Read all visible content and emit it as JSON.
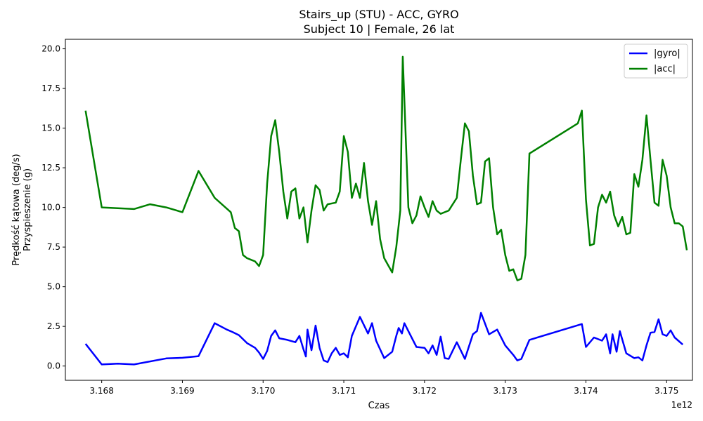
{
  "chart_data": {
    "type": "line",
    "title": "Stairs_up (STU) - ACC, GYRO",
    "subtitle": "Subject 10 | Female, 26 lat",
    "xlabel": "Czas",
    "ylabel_line1": "Prędkość kątowa (deg/s)",
    "ylabel_line2": "Przyspieszenie (g)",
    "x_offset_label": "1e12",
    "xlim": [
      3.16755,
      3.17532
    ],
    "ylim": [
      -0.9,
      20.6
    ],
    "x_ticks": [
      3.168,
      3.169,
      3.17,
      3.171,
      3.172,
      3.173,
      3.174,
      3.175
    ],
    "x_tick_labels": [
      "3.168",
      "3.169",
      "3.170",
      "3.171",
      "3.172",
      "3.173",
      "3.174",
      "3.175"
    ],
    "y_ticks": [
      0,
      2.5,
      5,
      7.5,
      10,
      12.5,
      15,
      17.5,
      20
    ],
    "y_tick_labels": [
      "0.0",
      "2.5",
      "5.0",
      "7.5",
      "10.0",
      "12.5",
      "15.0",
      "17.5",
      "20.0"
    ],
    "grid": false,
    "legend_position": "top-right",
    "series": [
      {
        "name": "|gyro|",
        "color": "#0000ff",
        "points": [
          [
            3.1678,
            1.4
          ],
          [
            3.168,
            0.1
          ],
          [
            3.1682,
            0.15
          ],
          [
            3.1684,
            0.1
          ],
          [
            3.1688,
            0.48
          ],
          [
            3.169,
            0.52
          ],
          [
            3.1692,
            0.62
          ],
          [
            3.1694,
            2.7
          ],
          [
            3.16955,
            2.3
          ],
          [
            3.16962,
            2.15
          ],
          [
            3.1697,
            1.95
          ],
          [
            3.1698,
            1.45
          ],
          [
            3.1699,
            1.15
          ],
          [
            3.16995,
            0.85
          ],
          [
            3.17,
            0.45
          ],
          [
            3.17005,
            0.95
          ],
          [
            3.1701,
            1.9
          ],
          [
            3.17015,
            2.25
          ],
          [
            3.1702,
            1.75
          ],
          [
            3.1703,
            1.65
          ],
          [
            3.1704,
            1.5
          ],
          [
            3.17045,
            1.9
          ],
          [
            3.1705,
            1.05
          ],
          [
            3.17053,
            0.6
          ],
          [
            3.17055,
            2.3
          ],
          [
            3.1706,
            1.0
          ],
          [
            3.17065,
            2.55
          ],
          [
            3.1707,
            1.15
          ],
          [
            3.17075,
            0.35
          ],
          [
            3.1708,
            0.25
          ],
          [
            3.17085,
            0.8
          ],
          [
            3.1709,
            1.15
          ],
          [
            3.17095,
            0.7
          ],
          [
            3.171,
            0.8
          ],
          [
            3.17105,
            0.55
          ],
          [
            3.1711,
            1.9
          ],
          [
            3.1712,
            3.1
          ],
          [
            3.1713,
            2.05
          ],
          [
            3.17135,
            2.7
          ],
          [
            3.1714,
            1.6
          ],
          [
            3.1715,
            0.5
          ],
          [
            3.1716,
            0.9
          ],
          [
            3.17165,
            1.9
          ],
          [
            3.17168,
            2.4
          ],
          [
            3.17172,
            2.05
          ],
          [
            3.17175,
            2.7
          ],
          [
            3.1718,
            2.2
          ],
          [
            3.1719,
            1.2
          ],
          [
            3.172,
            1.15
          ],
          [
            3.17205,
            0.8
          ],
          [
            3.1721,
            1.3
          ],
          [
            3.17215,
            0.7
          ],
          [
            3.1722,
            1.85
          ],
          [
            3.17225,
            0.5
          ],
          [
            3.1723,
            0.45
          ],
          [
            3.1724,
            1.5
          ],
          [
            3.1725,
            0.45
          ],
          [
            3.1726,
            2.0
          ],
          [
            3.17265,
            2.2
          ],
          [
            3.1727,
            3.35
          ],
          [
            3.1728,
            2.0
          ],
          [
            3.1729,
            2.3
          ],
          [
            3.173,
            1.3
          ],
          [
            3.1731,
            0.7
          ],
          [
            3.17315,
            0.35
          ],
          [
            3.1732,
            0.45
          ],
          [
            3.1733,
            1.65
          ],
          [
            3.17395,
            2.65
          ],
          [
            3.174,
            1.2
          ],
          [
            3.1741,
            1.8
          ],
          [
            3.1742,
            1.6
          ],
          [
            3.17425,
            2.0
          ],
          [
            3.1743,
            0.8
          ],
          [
            3.17433,
            2.0
          ],
          [
            3.17438,
            0.9
          ],
          [
            3.17442,
            2.2
          ],
          [
            3.1745,
            0.8
          ],
          [
            3.1746,
            0.5
          ],
          [
            3.17465,
            0.55
          ],
          [
            3.1747,
            0.35
          ],
          [
            3.17475,
            1.3
          ],
          [
            3.1748,
            2.1
          ],
          [
            3.17485,
            2.15
          ],
          [
            3.1749,
            2.95
          ],
          [
            3.17495,
            2.0
          ],
          [
            3.175,
            1.9
          ],
          [
            3.17505,
            2.25
          ],
          [
            3.1751,
            1.8
          ],
          [
            3.1752,
            1.35
          ]
        ]
      },
      {
        "name": "|acc|",
        "color": "#008000",
        "points": [
          [
            3.1678,
            16.1
          ],
          [
            3.168,
            10.0
          ],
          [
            3.1684,
            9.9
          ],
          [
            3.1686,
            10.2
          ],
          [
            3.1688,
            10.0
          ],
          [
            3.169,
            9.7
          ],
          [
            3.1692,
            12.3
          ],
          [
            3.1694,
            10.6
          ],
          [
            3.1696,
            9.7
          ],
          [
            3.16965,
            8.7
          ],
          [
            3.1697,
            8.5
          ],
          [
            3.16975,
            7.0
          ],
          [
            3.1698,
            6.8
          ],
          [
            3.16985,
            6.7
          ],
          [
            3.1699,
            6.6
          ],
          [
            3.16995,
            6.3
          ],
          [
            3.17,
            7.0
          ],
          [
            3.17005,
            11.5
          ],
          [
            3.1701,
            14.5
          ],
          [
            3.17015,
            15.5
          ],
          [
            3.1702,
            13.5
          ],
          [
            3.17025,
            11.0
          ],
          [
            3.1703,
            9.3
          ],
          [
            3.17035,
            11.0
          ],
          [
            3.1704,
            11.2
          ],
          [
            3.17045,
            9.3
          ],
          [
            3.1705,
            10.0
          ],
          [
            3.17055,
            7.8
          ],
          [
            3.1706,
            9.8
          ],
          [
            3.17065,
            11.4
          ],
          [
            3.1707,
            11.1
          ],
          [
            3.17075,
            9.8
          ],
          [
            3.1708,
            10.2
          ],
          [
            3.1709,
            10.3
          ],
          [
            3.17095,
            11.0
          ],
          [
            3.171,
            14.5
          ],
          [
            3.17105,
            13.5
          ],
          [
            3.1711,
            10.6
          ],
          [
            3.17115,
            11.5
          ],
          [
            3.1712,
            10.6
          ],
          [
            3.17125,
            12.8
          ],
          [
            3.1713,
            10.4
          ],
          [
            3.17135,
            8.9
          ],
          [
            3.1714,
            10.4
          ],
          [
            3.17145,
            8.0
          ],
          [
            3.1715,
            6.8
          ],
          [
            3.1716,
            5.9
          ],
          [
            3.17165,
            7.5
          ],
          [
            3.1717,
            9.8
          ],
          [
            3.17173,
            19.5
          ],
          [
            3.1718,
            10.0
          ],
          [
            3.17185,
            9.0
          ],
          [
            3.1719,
            9.5
          ],
          [
            3.17195,
            10.7
          ],
          [
            3.172,
            10.0
          ],
          [
            3.17205,
            9.4
          ],
          [
            3.1721,
            10.4
          ],
          [
            3.17215,
            9.8
          ],
          [
            3.1722,
            9.6
          ],
          [
            3.17225,
            9.7
          ],
          [
            3.1723,
            9.8
          ],
          [
            3.1724,
            10.6
          ],
          [
            3.17245,
            13.0
          ],
          [
            3.1725,
            15.3
          ],
          [
            3.17255,
            14.8
          ],
          [
            3.1726,
            12.0
          ],
          [
            3.17265,
            10.2
          ],
          [
            3.1727,
            10.3
          ],
          [
            3.17275,
            12.9
          ],
          [
            3.1728,
            13.1
          ],
          [
            3.17285,
            10.0
          ],
          [
            3.1729,
            8.3
          ],
          [
            3.17295,
            8.6
          ],
          [
            3.173,
            7.0
          ],
          [
            3.17305,
            6.0
          ],
          [
            3.1731,
            6.1
          ],
          [
            3.17315,
            5.4
          ],
          [
            3.1732,
            5.5
          ],
          [
            3.17325,
            7.0
          ],
          [
            3.1733,
            13.4
          ],
          [
            3.1739,
            15.3
          ],
          [
            3.17395,
            16.1
          ],
          [
            3.174,
            10.5
          ],
          [
            3.17405,
            7.6
          ],
          [
            3.1741,
            7.7
          ],
          [
            3.17415,
            10.0
          ],
          [
            3.1742,
            10.8
          ],
          [
            3.17425,
            10.3
          ],
          [
            3.1743,
            11.0
          ],
          [
            3.17435,
            9.5
          ],
          [
            3.1744,
            8.8
          ],
          [
            3.17445,
            9.4
          ],
          [
            3.1745,
            8.3
          ],
          [
            3.17455,
            8.4
          ],
          [
            3.1746,
            12.1
          ],
          [
            3.17465,
            11.3
          ],
          [
            3.1747,
            13.0
          ],
          [
            3.17475,
            15.8
          ],
          [
            3.1748,
            13.0
          ],
          [
            3.17485,
            10.3
          ],
          [
            3.1749,
            10.1
          ],
          [
            3.17495,
            13.0
          ],
          [
            3.175,
            12.0
          ],
          [
            3.17505,
            10.0
          ],
          [
            3.1751,
            9.0
          ],
          [
            3.17515,
            9.0
          ],
          [
            3.1752,
            8.8
          ],
          [
            3.17525,
            7.3
          ]
        ]
      }
    ]
  }
}
